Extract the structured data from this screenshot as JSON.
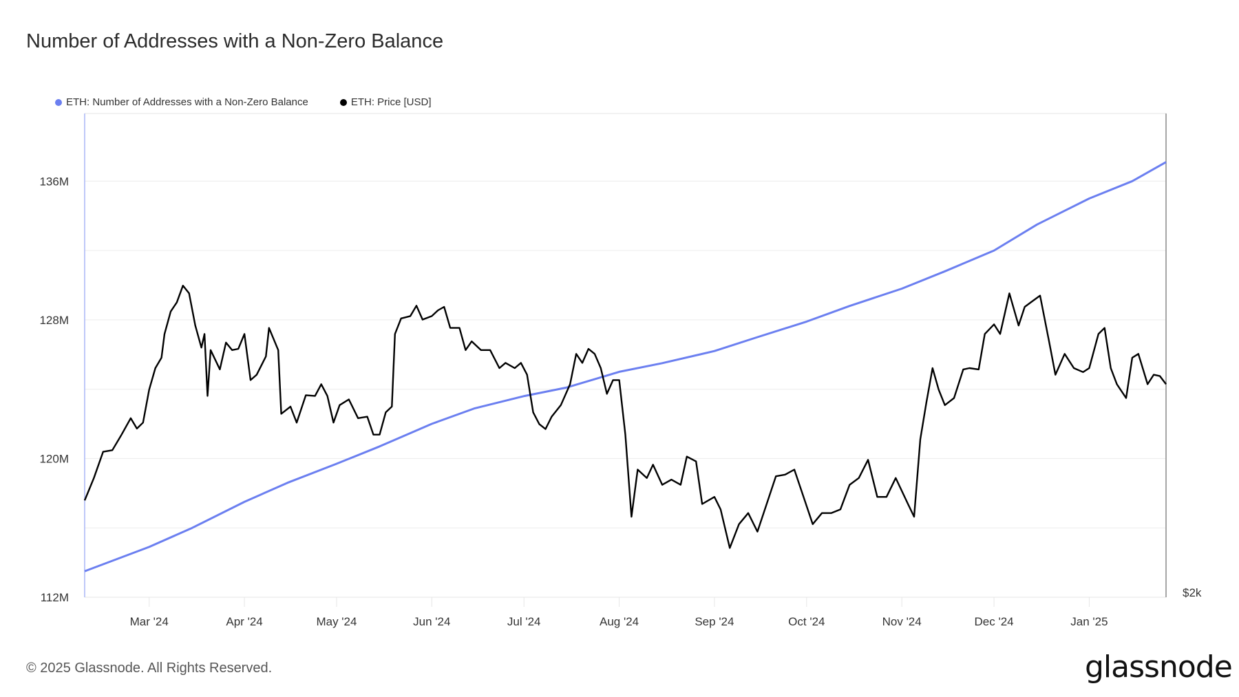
{
  "title": "Number of Addresses with a Non-Zero Balance",
  "footer": "© 2025 Glassnode. All Rights Reserved.",
  "logo": "glassnode",
  "chart_data": {
    "type": "line",
    "title": "Number of Addresses with a Non-Zero Balance",
    "legend_position": "top-left",
    "grid": true,
    "x_range": [
      "2024-02-09",
      "2025-01-26"
    ],
    "x_ticks": [
      {
        "date": "2024-03-01",
        "label": "Mar '24"
      },
      {
        "date": "2024-04-01",
        "label": "Apr '24"
      },
      {
        "date": "2024-05-01",
        "label": "May '24"
      },
      {
        "date": "2024-06-01",
        "label": "Jun '24"
      },
      {
        "date": "2024-07-01",
        "label": "Jul '24"
      },
      {
        "date": "2024-08-01",
        "label": "Aug '24"
      },
      {
        "date": "2024-09-01",
        "label": "Sep '24"
      },
      {
        "date": "2024-10-01",
        "label": "Oct '24"
      },
      {
        "date": "2024-11-01",
        "label": "Nov '24"
      },
      {
        "date": "2024-12-01",
        "label": "Dec '24"
      },
      {
        "date": "2025-01-01",
        "label": "Jan '25"
      }
    ],
    "left_axis": {
      "ylim": [
        112,
        139.9
      ],
      "unit": "M",
      "ticks": [
        {
          "value": 112,
          "label": "112M"
        },
        {
          "value": 120,
          "label": "120M"
        },
        {
          "value": 128,
          "label": "128M"
        },
        {
          "value": 136,
          "label": "136M"
        }
      ],
      "grid_step": 4
    },
    "right_axis": {
      "scale": "log",
      "ylim": [
        2000,
        5980
      ],
      "ticks": [
        {
          "value": 2000,
          "label": "$2k"
        }
      ]
    },
    "series": [
      {
        "name": "ETH: Number of Addresses with a Non-Zero Balance",
        "axis": "left",
        "color": "#6b7ff0",
        "points": [
          [
            "2024-02-09",
            113.5
          ],
          [
            "2024-03-01",
            114.9
          ],
          [
            "2024-03-15",
            116.0
          ],
          [
            "2024-04-01",
            117.5
          ],
          [
            "2024-04-15",
            118.6
          ],
          [
            "2024-05-01",
            119.7
          ],
          [
            "2024-05-15",
            120.7
          ],
          [
            "2024-06-01",
            122.0
          ],
          [
            "2024-06-15",
            122.9
          ],
          [
            "2024-07-01",
            123.6
          ],
          [
            "2024-07-15",
            124.1
          ],
          [
            "2024-08-01",
            125.0
          ],
          [
            "2024-08-15",
            125.5
          ],
          [
            "2024-09-01",
            126.2
          ],
          [
            "2024-09-15",
            127.0
          ],
          [
            "2024-10-01",
            127.9
          ],
          [
            "2024-10-15",
            128.8
          ],
          [
            "2024-11-01",
            129.8
          ],
          [
            "2024-11-15",
            130.8
          ],
          [
            "2024-12-01",
            132.0
          ],
          [
            "2024-12-15",
            133.5
          ],
          [
            "2025-01-01",
            135.0
          ],
          [
            "2025-01-15",
            136.0
          ],
          [
            "2025-01-26",
            137.1
          ]
        ]
      },
      {
        "name": "ETH: Price [USD]",
        "axis": "right",
        "color": "#000000",
        "points": [
          [
            "2024-02-09",
            2490
          ],
          [
            "2024-02-12",
            2620
          ],
          [
            "2024-02-15",
            2780
          ],
          [
            "2024-02-18",
            2790
          ],
          [
            "2024-02-21",
            2890
          ],
          [
            "2024-02-24",
            3000
          ],
          [
            "2024-02-26",
            2930
          ],
          [
            "2024-02-28",
            2970
          ],
          [
            "2024-03-01",
            3200
          ],
          [
            "2024-03-03",
            3360
          ],
          [
            "2024-03-05",
            3440
          ],
          [
            "2024-03-06",
            3630
          ],
          [
            "2024-03-08",
            3820
          ],
          [
            "2024-03-10",
            3900
          ],
          [
            "2024-03-12",
            4050
          ],
          [
            "2024-03-14",
            3980
          ],
          [
            "2024-03-16",
            3700
          ],
          [
            "2024-03-18",
            3520
          ],
          [
            "2024-03-19",
            3630
          ],
          [
            "2024-03-20",
            3155
          ],
          [
            "2024-03-21",
            3500
          ],
          [
            "2024-03-24",
            3350
          ],
          [
            "2024-03-26",
            3560
          ],
          [
            "2024-03-28",
            3500
          ],
          [
            "2024-03-30",
            3510
          ],
          [
            "2024-04-01",
            3630
          ],
          [
            "2024-04-03",
            3270
          ],
          [
            "2024-04-05",
            3310
          ],
          [
            "2024-04-08",
            3450
          ],
          [
            "2024-04-09",
            3680
          ],
          [
            "2024-04-12",
            3500
          ],
          [
            "2024-04-13",
            3030
          ],
          [
            "2024-04-16",
            3080
          ],
          [
            "2024-04-18",
            2970
          ],
          [
            "2024-04-21",
            3160
          ],
          [
            "2024-04-24",
            3155
          ],
          [
            "2024-04-26",
            3240
          ],
          [
            "2024-04-28",
            3155
          ],
          [
            "2024-04-30",
            2970
          ],
          [
            "2024-05-02",
            3090
          ],
          [
            "2024-05-05",
            3130
          ],
          [
            "2024-05-08",
            3000
          ],
          [
            "2024-05-11",
            3010
          ],
          [
            "2024-05-13",
            2890
          ],
          [
            "2024-05-15",
            2890
          ],
          [
            "2024-05-17",
            3040
          ],
          [
            "2024-05-19",
            3080
          ],
          [
            "2024-05-20",
            3630
          ],
          [
            "2024-05-22",
            3760
          ],
          [
            "2024-05-25",
            3780
          ],
          [
            "2024-05-27",
            3870
          ],
          [
            "2024-05-29",
            3750
          ],
          [
            "2024-06-01",
            3780
          ],
          [
            "2024-06-03",
            3830
          ],
          [
            "2024-06-05",
            3860
          ],
          [
            "2024-06-07",
            3680
          ],
          [
            "2024-06-10",
            3680
          ],
          [
            "2024-06-12",
            3500
          ],
          [
            "2024-06-14",
            3570
          ],
          [
            "2024-06-17",
            3500
          ],
          [
            "2024-06-20",
            3500
          ],
          [
            "2024-06-23",
            3360
          ],
          [
            "2024-06-25",
            3400
          ],
          [
            "2024-06-28",
            3360
          ],
          [
            "2024-06-30",
            3400
          ],
          [
            "2024-07-02",
            3310
          ],
          [
            "2024-07-04",
            3040
          ],
          [
            "2024-07-06",
            2960
          ],
          [
            "2024-07-08",
            2927
          ],
          [
            "2024-07-10",
            3010
          ],
          [
            "2024-07-13",
            3090
          ],
          [
            "2024-07-16",
            3240
          ],
          [
            "2024-07-18",
            3470
          ],
          [
            "2024-07-20",
            3400
          ],
          [
            "2024-07-22",
            3510
          ],
          [
            "2024-07-24",
            3470
          ],
          [
            "2024-07-26",
            3360
          ],
          [
            "2024-07-28",
            3170
          ],
          [
            "2024-07-30",
            3270
          ],
          [
            "2024-08-01",
            3270
          ],
          [
            "2024-08-03",
            2890
          ],
          [
            "2024-08-05",
            2400
          ],
          [
            "2024-08-07",
            2670
          ],
          [
            "2024-08-10",
            2620
          ],
          [
            "2024-08-12",
            2700
          ],
          [
            "2024-08-15",
            2580
          ],
          [
            "2024-08-18",
            2610
          ],
          [
            "2024-08-21",
            2580
          ],
          [
            "2024-08-23",
            2750
          ],
          [
            "2024-08-26",
            2720
          ],
          [
            "2024-08-28",
            2470
          ],
          [
            "2024-09-01",
            2510
          ],
          [
            "2024-09-03",
            2440
          ],
          [
            "2024-09-06",
            2236
          ],
          [
            "2024-09-09",
            2360
          ],
          [
            "2024-09-12",
            2420
          ],
          [
            "2024-09-15",
            2320
          ],
          [
            "2024-09-18",
            2470
          ],
          [
            "2024-09-21",
            2630
          ],
          [
            "2024-09-24",
            2640
          ],
          [
            "2024-09-27",
            2670
          ],
          [
            "2024-09-30",
            2510
          ],
          [
            "2024-10-03",
            2360
          ],
          [
            "2024-10-06",
            2420
          ],
          [
            "2024-10-09",
            2420
          ],
          [
            "2024-10-12",
            2440
          ],
          [
            "2024-10-15",
            2580
          ],
          [
            "2024-10-18",
            2620
          ],
          [
            "2024-10-21",
            2730
          ],
          [
            "2024-10-24",
            2510
          ],
          [
            "2024-10-27",
            2510
          ],
          [
            "2024-10-30",
            2620
          ],
          [
            "2024-11-03",
            2470
          ],
          [
            "2024-11-05",
            2400
          ],
          [
            "2024-11-07",
            2860
          ],
          [
            "2024-11-09",
            3110
          ],
          [
            "2024-11-11",
            3360
          ],
          [
            "2024-11-13",
            3200
          ],
          [
            "2024-11-15",
            3090
          ],
          [
            "2024-11-18",
            3140
          ],
          [
            "2024-11-21",
            3350
          ],
          [
            "2024-11-23",
            3360
          ],
          [
            "2024-11-26",
            3350
          ],
          [
            "2024-11-28",
            3630
          ],
          [
            "2024-12-01",
            3710
          ],
          [
            "2024-12-03",
            3630
          ],
          [
            "2024-12-06",
            3980
          ],
          [
            "2024-12-09",
            3700
          ],
          [
            "2024-12-11",
            3860
          ],
          [
            "2024-12-13",
            3900
          ],
          [
            "2024-12-16",
            3960
          ],
          [
            "2024-12-19",
            3560
          ],
          [
            "2024-12-21",
            3310
          ],
          [
            "2024-12-24",
            3470
          ],
          [
            "2024-12-27",
            3360
          ],
          [
            "2024-12-30",
            3330
          ],
          [
            "2025-01-01",
            3360
          ],
          [
            "2025-01-04",
            3630
          ],
          [
            "2025-01-06",
            3680
          ],
          [
            "2025-01-08",
            3360
          ],
          [
            "2025-01-10",
            3240
          ],
          [
            "2025-01-13",
            3140
          ],
          [
            "2025-01-15",
            3440
          ],
          [
            "2025-01-17",
            3470
          ],
          [
            "2025-01-20",
            3240
          ],
          [
            "2025-01-22",
            3310
          ],
          [
            "2025-01-24",
            3300
          ],
          [
            "2025-01-26",
            3240
          ]
        ]
      }
    ]
  }
}
